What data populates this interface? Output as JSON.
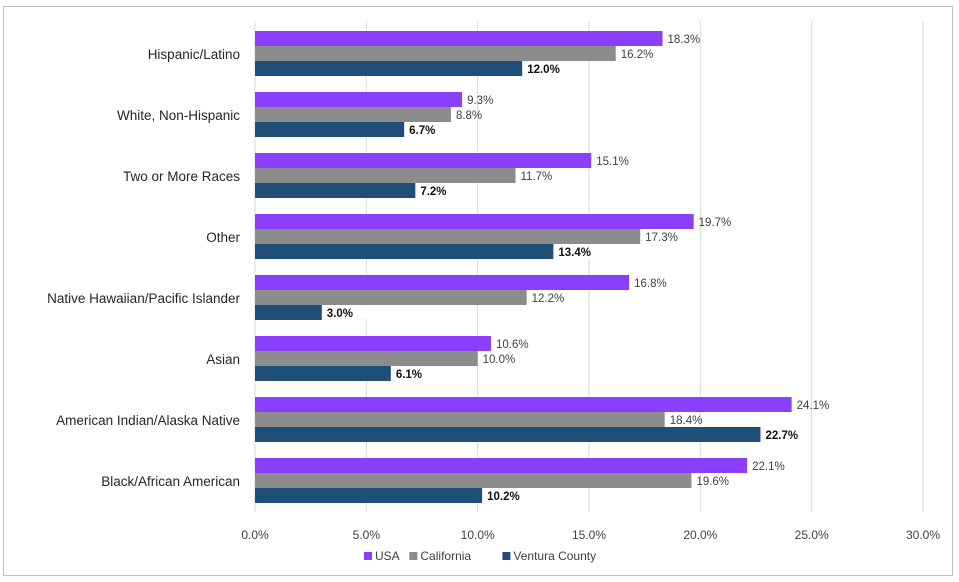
{
  "chart_data": {
    "type": "bar",
    "orientation": "horizontal",
    "categories": [
      "Hispanic/Latino",
      "White, Non-Hispanic",
      "Two or More Races",
      "Other",
      "Native Hawaiian/Pacific Islander",
      "Asian",
      "American Indian/Alaska Native",
      "Black/African American"
    ],
    "series": [
      {
        "name": "USA",
        "color": "#8a3ffc",
        "values": [
          18.3,
          9.3,
          15.1,
          19.7,
          16.8,
          10.6,
          24.1,
          22.1
        ]
      },
      {
        "name": "California",
        "color": "#8c8c8c",
        "values": [
          16.2,
          8.8,
          11.7,
          17.3,
          12.2,
          10.0,
          18.4,
          19.6
        ]
      },
      {
        "name": "Ventura County",
        "color": "#1f4e79",
        "values": [
          12.0,
          6.7,
          7.2,
          13.4,
          3.0,
          6.1,
          22.7,
          10.2
        ],
        "bold_labels": true
      }
    ],
    "value_labels": {
      "USA": [
        "18.3%",
        "9.3%",
        "15.1%",
        "19.7%",
        "16.8%",
        "10.6%",
        "24.1%",
        "22.1%"
      ],
      "California": [
        "16.2%",
        "8.8%",
        "11.7%",
        "17.3%",
        "12.2%",
        "10.0%",
        "18.4%",
        "19.6%"
      ],
      "Ventura County": [
        "12.0%",
        "6.7%",
        "7.2%",
        "13.4%",
        "3.0%",
        "6.1%",
        "22.7%",
        "10.2%"
      ]
    },
    "xlim": [
      0,
      30
    ],
    "xticks": [
      0,
      5,
      10,
      15,
      20,
      25,
      30
    ],
    "xtick_labels": [
      "0.0%",
      "5.0%",
      "10.0%",
      "15.0%",
      "20.0%",
      "25.0%",
      "30.0%"
    ],
    "grid": "vertical",
    "legend": "bottom"
  }
}
